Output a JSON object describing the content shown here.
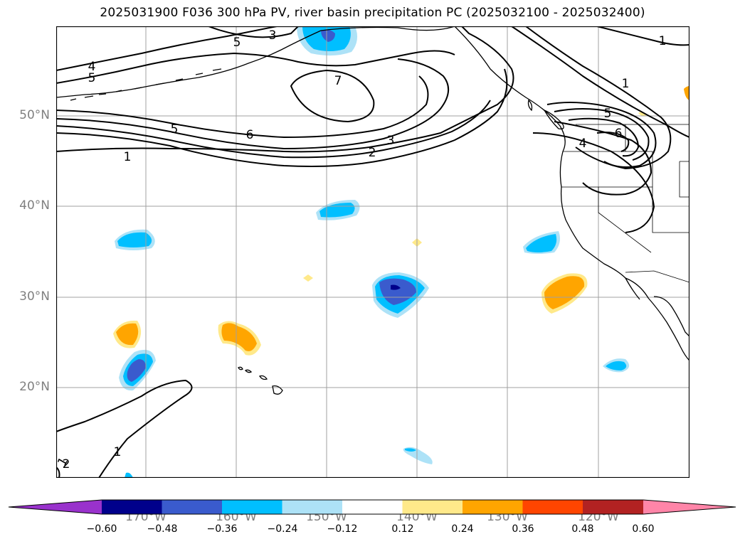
{
  "title": "2025031900 F036 300 hPa PV, river basin precipitation PC (2025032100 - 2025032400)",
  "map": {
    "lon_labels": [
      "170°W",
      "160°W",
      "150°W",
      "140°W",
      "130°W",
      "120°W"
    ],
    "lat_labels": [
      "50°N",
      "40°N",
      "30°N",
      "20°N"
    ],
    "grid_color": "#a0a0a0",
    "contour_color": "#000000",
    "pv_contour_labels": [
      "4",
      "5",
      "5",
      "6",
      "1",
      "3",
      "2",
      "1",
      "7",
      "3",
      "5",
      "1",
      "5",
      "6",
      "4",
      "1",
      "1",
      "2"
    ]
  },
  "colorbar": {
    "colors": [
      "#9932cc",
      "#00008b",
      "#3a5bcd",
      "#00bfff",
      "#ade2f7",
      "#ffffff",
      "#ffe98a",
      "#ffa500",
      "#ff4500",
      "#b22222",
      "#ff85a8"
    ],
    "tick_labels": [
      "−0.60",
      "−0.48",
      "−0.36",
      "−0.24",
      "−0.12",
      "0.12",
      "0.24",
      "0.36",
      "0.48",
      "0.60"
    ]
  }
}
